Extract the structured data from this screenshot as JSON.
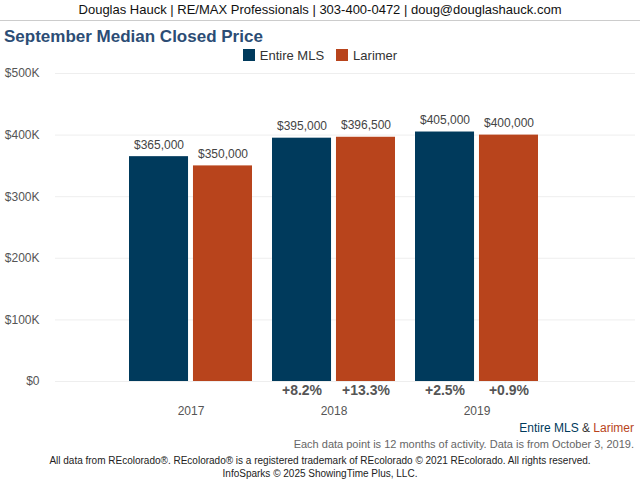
{
  "chart_data": {
    "type": "bar",
    "header": "Douglas Hauck | RE/MAX Professionals | 303-400-0472 | doug@douglashauck.com",
    "title": "September Median Closed Price",
    "categories": [
      "2017",
      "2018",
      "2019"
    ],
    "series": [
      {
        "name": "Entire MLS",
        "color": "#003a5c",
        "values": [
          365000,
          395000,
          405000
        ],
        "value_labels": [
          "$365,000",
          "$395,000",
          "$405,000"
        ],
        "changes": [
          null,
          8.2,
          2.5
        ],
        "change_labels": [
          null,
          "+8.2%",
          "+2.5%"
        ]
      },
      {
        "name": "Larimer",
        "color": "#b8441c",
        "values": [
          350000,
          396500,
          400000
        ],
        "value_labels": [
          "$350,000",
          "$396,500",
          "$400,000"
        ],
        "changes": [
          null,
          13.3,
          0.9
        ],
        "change_labels": [
          null,
          "+13.3%",
          "+0.9%"
        ]
      }
    ],
    "ylim": [
      0,
      500000
    ],
    "yticks": [
      {
        "value": 0,
        "label": "$0"
      },
      {
        "value": 100000,
        "label": "$100K"
      },
      {
        "value": 200000,
        "label": "$200K"
      },
      {
        "value": 300000,
        "label": "$300K"
      },
      {
        "value": 400000,
        "label": "$400K"
      },
      {
        "value": 500000,
        "label": "$500K"
      }
    ],
    "grid": true,
    "legend": "top",
    "data_labels": true,
    "series_caption_separator": "&",
    "note": "Each data point is 12 months of activity. Data is from October 3, 2019.",
    "copyright": "All data from REcolorado®. REcolorado® is a registered trademark of REcolorado © 2021 REcolorado. All rights reserved. InfoSparks © 2025 ShowingTime Plus, LLC."
  }
}
